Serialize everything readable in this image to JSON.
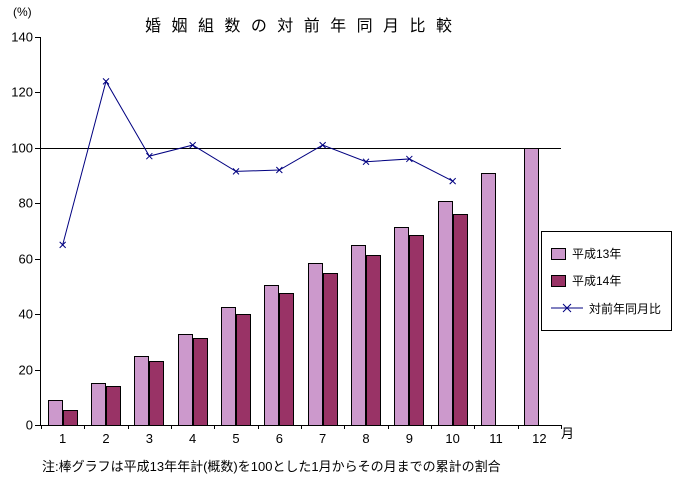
{
  "chart": {
    "title": "婚 姻 組 数 の 対 前 年 同 月 比 較",
    "y_unit": "(%)",
    "x_unit": "月",
    "note": "注:棒グラフは平成13年年計(概数)を100とした1月からその月までの累計の割合"
  },
  "chart_data": {
    "type": "bar+line",
    "title": "婚姻組数の対前年同月比較",
    "ylabel": "(%)",
    "xlabel": "月",
    "ylim": [
      0,
      140
    ],
    "yticks": [
      0,
      20,
      40,
      60,
      80,
      100,
      120,
      140
    ],
    "reference_line": 100,
    "grid": "off",
    "legend_position": "right",
    "categories": [
      1,
      2,
      3,
      4,
      5,
      6,
      7,
      8,
      9,
      10,
      11,
      12
    ],
    "series": [
      {
        "name": "平成13年",
        "type": "bar",
        "color": "#CC99CC",
        "values": [
          9,
          15,
          25,
          33,
          42.5,
          50.5,
          58.5,
          65,
          71.5,
          81,
          91,
          100
        ]
      },
      {
        "name": "平成14年",
        "type": "bar",
        "color": "#993366",
        "values": [
          5.5,
          14,
          23,
          31.5,
          40,
          47.5,
          55,
          61.5,
          68.5,
          76,
          null,
          null
        ]
      },
      {
        "name": "対前年同月比",
        "type": "line",
        "color": "#000080",
        "marker": "x",
        "values": [
          65,
          124,
          97,
          101,
          91.5,
          92,
          101,
          95,
          96,
          88,
          null,
          null
        ]
      }
    ]
  }
}
